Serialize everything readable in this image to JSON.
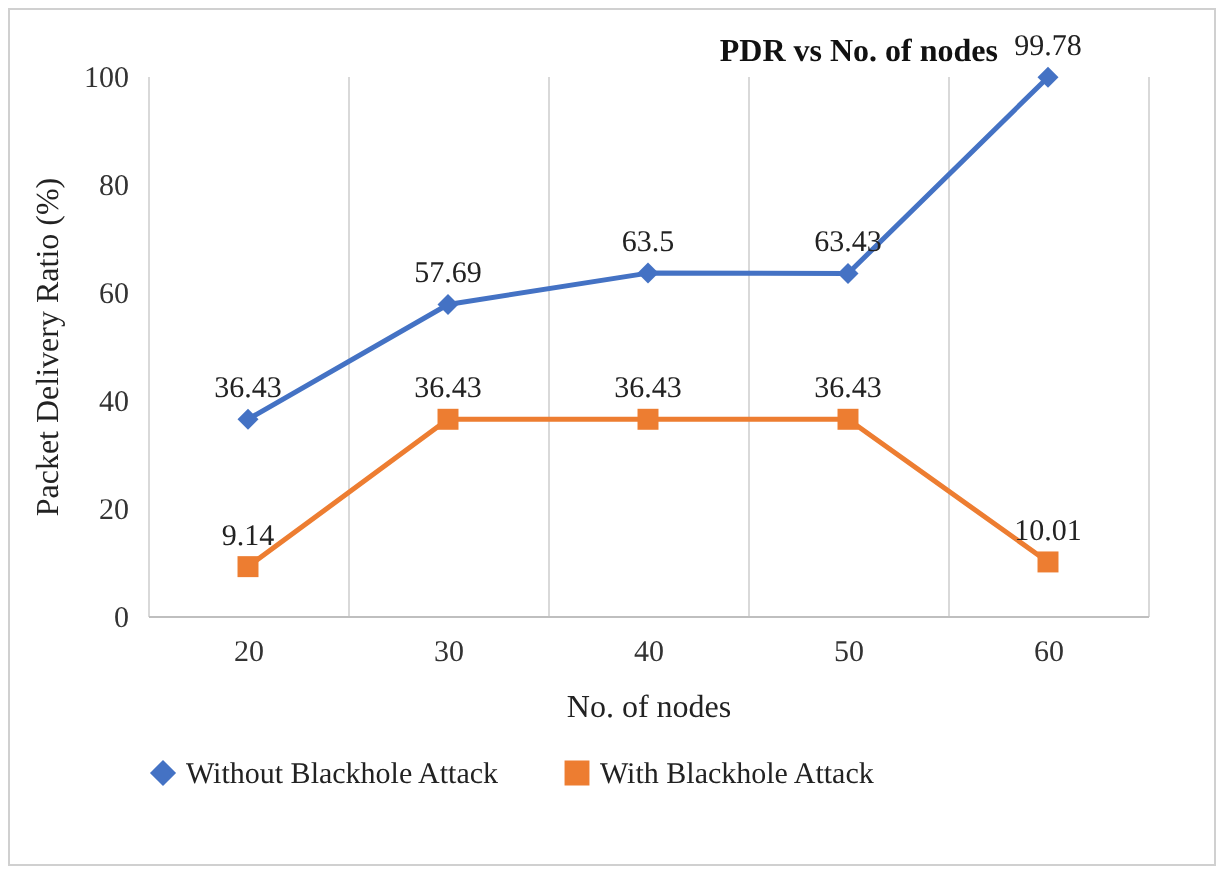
{
  "chart_data": {
    "type": "line",
    "title": "PDR vs No. of nodes",
    "xlabel": "No. of nodes",
    "ylabel": "Packet Delivery Ratio (%)",
    "categories": [
      "20",
      "30",
      "40",
      "50",
      "60"
    ],
    "series": [
      {
        "name": "Without Blackhole Attack",
        "color": "#4472c4",
        "marker": "diamond",
        "values": [
          36.43,
          57.69,
          63.5,
          63.43,
          99.78
        ]
      },
      {
        "name": "With Blackhole Attack",
        "color": "#ed7d31",
        "marker": "square",
        "values": [
          9.14,
          36.43,
          36.43,
          36.43,
          10.01
        ]
      }
    ],
    "ylim": [
      0,
      100
    ],
    "yticks": [
      0,
      20,
      40,
      60,
      80,
      100
    ],
    "grid": "x",
    "legend": "bottom",
    "data_labels": true
  }
}
